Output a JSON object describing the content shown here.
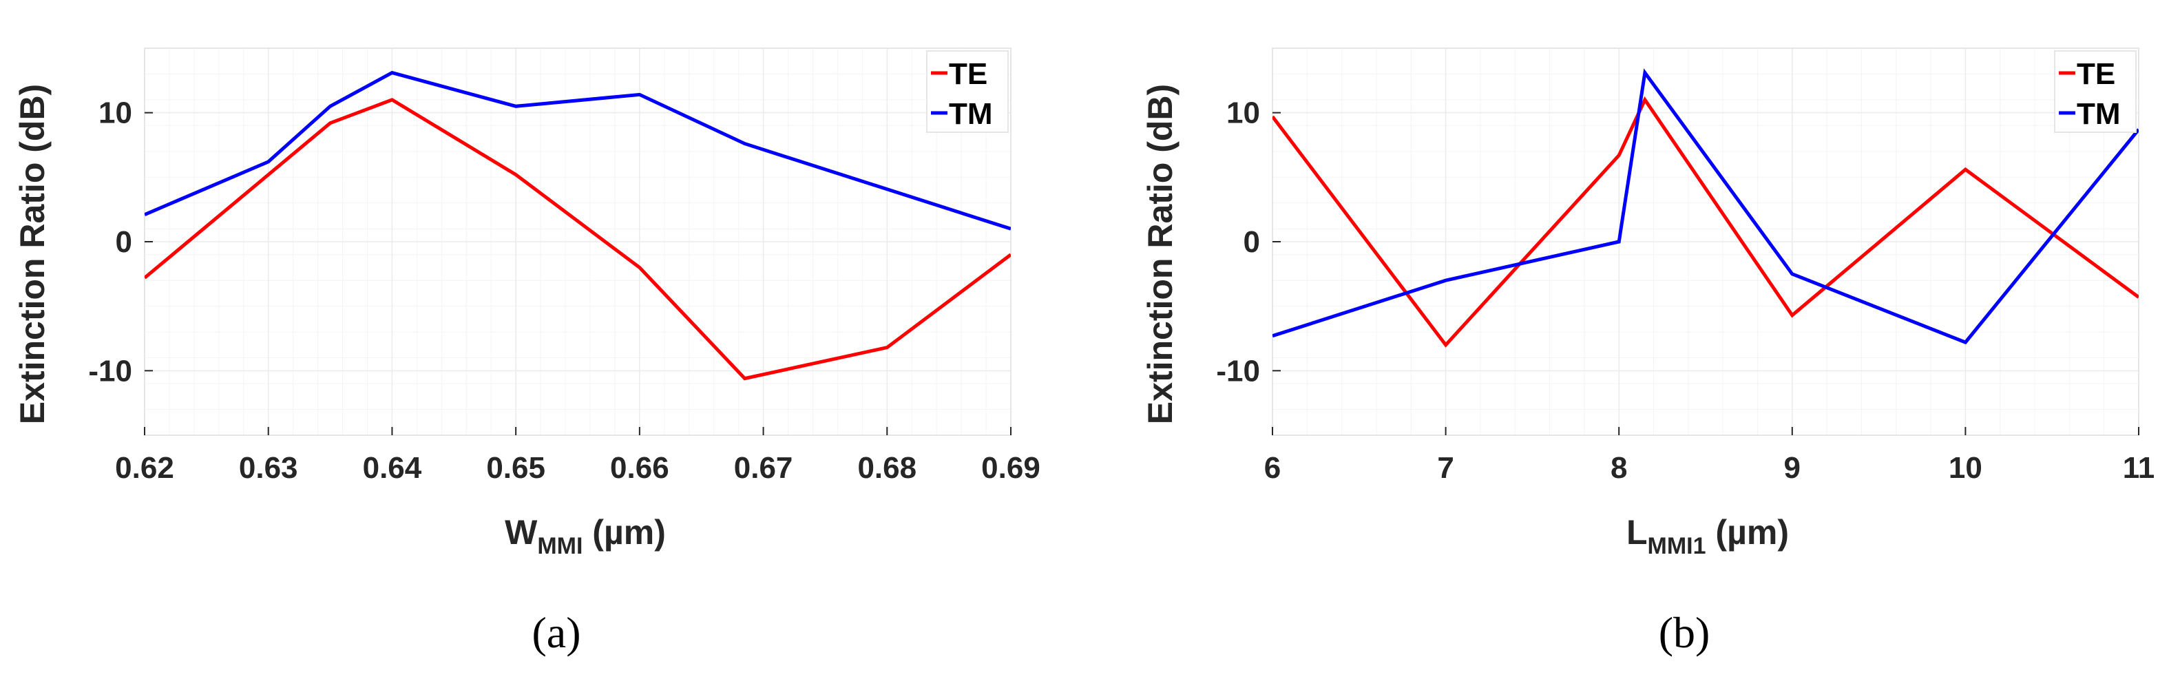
{
  "chart_data": [
    {
      "type": "line",
      "panel": "(a)",
      "xlabel_main": "W",
      "xlabel_sub": "MMI",
      "xlabel_unit": " (µm)",
      "ylabel": "Extinction Ratio (dB)",
      "xlim": [
        0.62,
        0.69
      ],
      "ylim": [
        -15,
        15
      ],
      "xticks": [
        0.62,
        0.63,
        0.64,
        0.65,
        0.66,
        0.67,
        0.68,
        0.69
      ],
      "xtick_labels": [
        "0.62",
        "0.63",
        "0.64",
        "0.65",
        "0.66",
        "0.67",
        "0.68",
        "0.69"
      ],
      "yticks": [
        -10,
        0,
        10
      ],
      "ytick_labels": [
        "-10",
        "0",
        "10"
      ],
      "grid": true,
      "legend_position": "top-right",
      "series": [
        {
          "name": "TE",
          "color": "#ff0000",
          "x": [
            0.62,
            0.635,
            0.64,
            0.65,
            0.66,
            0.6685,
            0.68,
            0.69
          ],
          "y": [
            -2.8,
            9.2,
            11.0,
            5.2,
            -2.0,
            -10.6,
            -8.2,
            -1.0
          ]
        },
        {
          "name": "TM",
          "color": "#0000ff",
          "x": [
            0.62,
            0.63,
            0.635,
            0.64,
            0.65,
            0.66,
            0.6685,
            0.69
          ],
          "y": [
            2.1,
            6.2,
            10.5,
            13.1,
            10.5,
            11.4,
            7.6,
            1.0
          ]
        }
      ]
    },
    {
      "type": "line",
      "panel": "(b)",
      "xlabel_main": "L",
      "xlabel_sub": "MMI1",
      "xlabel_unit": " (µm)",
      "ylabel": "Extinction Ratio (dB)",
      "xlim": [
        6,
        11
      ],
      "ylim": [
        -15,
        15
      ],
      "xticks": [
        6,
        7,
        8,
        9,
        10,
        11
      ],
      "xtick_labels": [
        "6",
        "7",
        "8",
        "9",
        "10",
        "11"
      ],
      "yticks": [
        -10,
        0,
        10
      ],
      "ytick_labels": [
        "-10",
        "0",
        "10"
      ],
      "grid": true,
      "legend_position": "top-right",
      "series": [
        {
          "name": "TE",
          "color": "#ff0000",
          "x": [
            6,
            7,
            8,
            8.15,
            9,
            10,
            11
          ],
          "y": [
            9.7,
            -8.0,
            6.7,
            11.0,
            -5.7,
            5.6,
            -4.3
          ]
        },
        {
          "name": "TM",
          "color": "#0000ff",
          "x": [
            6,
            7,
            8,
            8.15,
            9,
            10,
            11
          ],
          "y": [
            -7.3,
            -3.0,
            0.0,
            13.1,
            -2.5,
            -7.8,
            8.7
          ]
        }
      ]
    }
  ]
}
